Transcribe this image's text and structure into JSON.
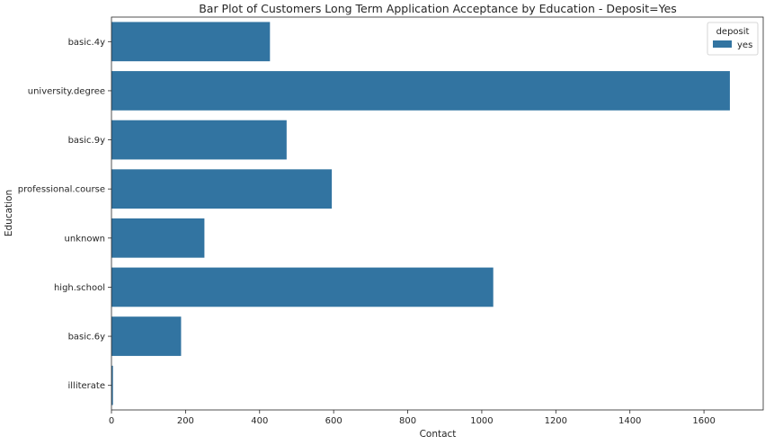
{
  "chart_data": {
    "type": "bar",
    "orientation": "horizontal",
    "title": "Bar Plot of Customers Long Term Application Acceptance by Education - Deposit=Yes",
    "xlabel": "Contact",
    "ylabel": "Education",
    "categories": [
      "basic.4y",
      "university.degree",
      "basic.9y",
      "professional.course",
      "unknown",
      "high.school",
      "basic.6y",
      "illiterate"
    ],
    "series": [
      {
        "name": "yes",
        "values": [
          428,
          1670,
          473,
          595,
          251,
          1031,
          188,
          4
        ]
      }
    ],
    "xlim": [
      0,
      1760
    ],
    "xticks": [
      "0",
      "200",
      "400",
      "600",
      "800",
      "1000",
      "1200",
      "1400",
      "1600"
    ],
    "grid": false,
    "legend": {
      "title": "deposit",
      "placement": "top-right"
    },
    "bar_color": "#3274a1"
  }
}
